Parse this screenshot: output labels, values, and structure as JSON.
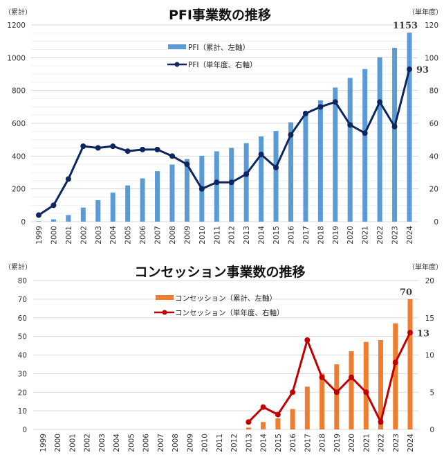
{
  "chart_data": [
    {
      "type": "bar+line",
      "title": "PFI事業数の推移",
      "left_unit": "（累計）",
      "right_unit": "（単年度）",
      "categories": [
        "1999",
        "2000",
        "2001",
        "2002",
        "2003",
        "2004",
        "2005",
        "2006",
        "2007",
        "2008",
        "2009",
        "2010",
        "2011",
        "2012",
        "2013",
        "2014",
        "2015",
        "2016",
        "2017",
        "2018",
        "2019",
        "2020",
        "2021",
        "2022",
        "2023",
        "2024"
      ],
      "left_axis": {
        "min": 0,
        "max": 1200,
        "ticks": [
          0,
          200,
          400,
          600,
          800,
          1000,
          1200
        ]
      },
      "right_axis": {
        "min": 0,
        "max": 120,
        "ticks": [
          0,
          20,
          40,
          60,
          80,
          100,
          120
        ]
      },
      "grid": true,
      "legend_position": "top-center",
      "series": [
        {
          "name": "PFI（累計、左軸）",
          "kind": "bar",
          "axis": "left",
          "color": "#5b9bd5",
          "values": [
            3,
            14,
            40,
            86,
            131,
            177,
            221,
            264,
            308,
            348,
            382,
            402,
            429,
            450,
            479,
            520,
            553,
            606,
            672,
            740,
            818,
            877,
            931,
            1003,
            1060,
            1153
          ],
          "end_label": "1153"
        },
        {
          "name": "PFI（単年度、右軸）",
          "kind": "line",
          "axis": "right",
          "color": "#0d2660",
          "values": [
            4,
            10,
            26,
            46,
            45,
            46,
            43,
            44,
            44,
            40,
            35,
            20,
            24,
            24,
            29,
            41,
            33,
            53,
            66,
            70,
            73,
            59,
            54,
            73,
            58,
            93
          ],
          "end_label": "93"
        }
      ]
    },
    {
      "type": "bar+line",
      "title": "コンセッション事業数の推移",
      "left_unit": "（累計）",
      "right_unit": "（単年度）",
      "categories": [
        "1999",
        "2000",
        "2001",
        "2002",
        "2003",
        "2004",
        "2005",
        "2006",
        "2007",
        "2008",
        "2009",
        "2010",
        "2011",
        "2012",
        "2013",
        "2014",
        "2015",
        "2016",
        "2017",
        "2018",
        "2019",
        "2020",
        "2021",
        "2022",
        "2023",
        "2024"
      ],
      "left_axis": {
        "min": 0,
        "max": 80,
        "ticks": [
          0,
          10,
          20,
          30,
          40,
          50,
          60,
          70,
          80
        ]
      },
      "right_axis": {
        "min": 0,
        "max": 20,
        "ticks": [
          0,
          5,
          10,
          15,
          20
        ]
      },
      "grid": true,
      "legend_position": "top-center",
      "series": [
        {
          "name": "コンセッション（累計、左軸）",
          "kind": "bar",
          "axis": "left",
          "color": "#ed7d31",
          "values": [
            null,
            null,
            null,
            null,
            null,
            null,
            null,
            null,
            null,
            null,
            null,
            null,
            null,
            null,
            1,
            4,
            6,
            11,
            23,
            30,
            35,
            42,
            47,
            48,
            57,
            70
          ],
          "end_label": "70"
        },
        {
          "name": "コンセッション（単年度、右軸）",
          "kind": "line",
          "axis": "right",
          "color": "#c00000",
          "values": [
            null,
            null,
            null,
            null,
            null,
            null,
            null,
            null,
            null,
            null,
            null,
            null,
            null,
            null,
            1,
            3,
            2,
            5,
            12,
            7,
            5,
            7,
            5,
            1,
            9,
            13
          ],
          "end_label": "13"
        }
      ]
    }
  ]
}
